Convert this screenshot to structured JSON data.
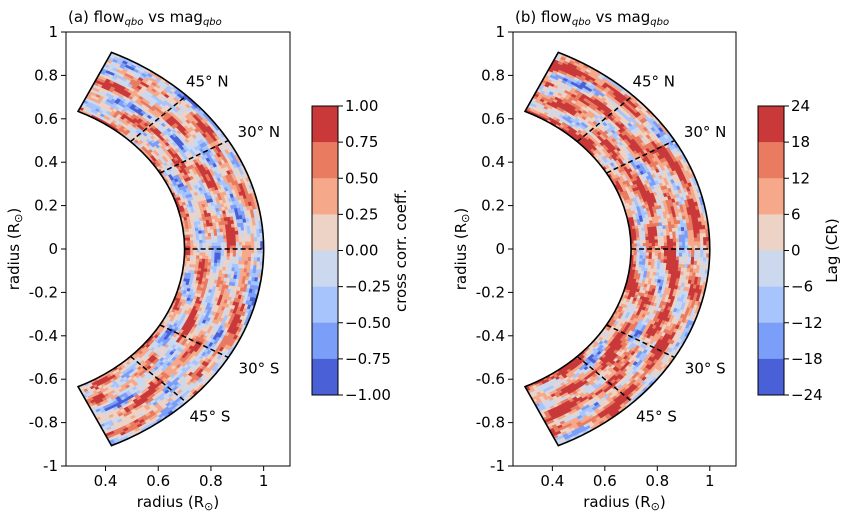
{
  "chart_data": [
    {
      "type": "heatmap",
      "title_prefix": "(a) flow",
      "title_sub1": "qbo",
      "title_mid": " vs mag",
      "title_sub2": "qbo",
      "xlabel": "radius (R",
      "ylabel": "radius (R",
      "unit_symbol": "⊙",
      "unit_close": ")",
      "xlim": [
        0.25,
        1.1
      ],
      "ylim": [
        -1,
        1
      ],
      "xticks": [
        0.4,
        0.6,
        0.8,
        1.0
      ],
      "xtick_labels": [
        "0.4",
        "0.6",
        "0.8",
        "1"
      ],
      "yticks": [
        -1,
        -0.8,
        -0.6,
        -0.4,
        -0.2,
        0,
        0.2,
        0.4,
        0.6,
        0.8,
        1
      ],
      "ytick_labels": [
        "-1",
        "-0.8",
        "-0.6",
        "-0.4",
        "-0.2",
        "0",
        "0.2",
        "0.4",
        "0.6",
        "0.8",
        "1"
      ],
      "r_range": [
        0.7,
        1.0
      ],
      "lat_range_deg": [
        -65,
        65
      ],
      "latitude_markers_deg": [
        45,
        30,
        0,
        -30,
        -45
      ],
      "latitude_labels": [
        "45° N",
        "30° N",
        "30° S",
        "45° S"
      ],
      "colorbar": {
        "label": "cross corr. coeff.",
        "ticks": [
          1.0,
          0.75,
          0.5,
          0.25,
          0.0,
          -0.25,
          -0.5,
          -0.75,
          -1.0
        ],
        "tick_labels": [
          "1.00",
          "0.75",
          "0.50",
          "0.25",
          "0.00",
          "−0.25",
          "−0.50",
          "−0.75",
          "−1.00"
        ]
      },
      "seed": 3,
      "bias": 0.15
    },
    {
      "type": "heatmap",
      "title_prefix": "(b) flow",
      "title_sub1": "qbo",
      "title_mid": " vs mag",
      "title_sub2": "qbo",
      "xlabel": "radius (R",
      "ylabel": "radius (R",
      "unit_symbol": "⊙",
      "unit_close": ")",
      "xlim": [
        0.25,
        1.1
      ],
      "ylim": [
        -1,
        1
      ],
      "xticks": [
        0.4,
        0.6,
        0.8,
        1.0
      ],
      "xtick_labels": [
        "0.4",
        "0.6",
        "0.8",
        "1"
      ],
      "yticks": [
        -1,
        -0.8,
        -0.6,
        -0.4,
        -0.2,
        0,
        0.2,
        0.4,
        0.6,
        0.8,
        1
      ],
      "ytick_labels": [
        "-1",
        "-0.8",
        "-0.6",
        "-0.4",
        "-0.2",
        "0",
        "0.2",
        "0.4",
        "0.6",
        "0.8",
        "1"
      ],
      "r_range": [
        0.7,
        1.0
      ],
      "lat_range_deg": [
        -65,
        65
      ],
      "latitude_markers_deg": [
        45,
        30,
        0,
        -30,
        -45
      ],
      "latitude_labels": [
        "45° N",
        "30° N",
        "30° S",
        "45° S"
      ],
      "colorbar": {
        "label": "Lag (CR)",
        "ticks": [
          24,
          18,
          12,
          6,
          0,
          -6,
          -12,
          -18,
          -24
        ],
        "tick_labels": [
          "24",
          "18",
          "12",
          "6",
          "0",
          "−6",
          "−12",
          "−18",
          "−24"
        ]
      },
      "seed": 11,
      "bias": 0.35
    }
  ],
  "colormap": [
    "#4960d6",
    "#7b9ef8",
    "#a8c4fc",
    "#cbd8ee",
    "#ecd3c5",
    "#f6a98a",
    "#e97b61",
    "#c9393a"
  ]
}
